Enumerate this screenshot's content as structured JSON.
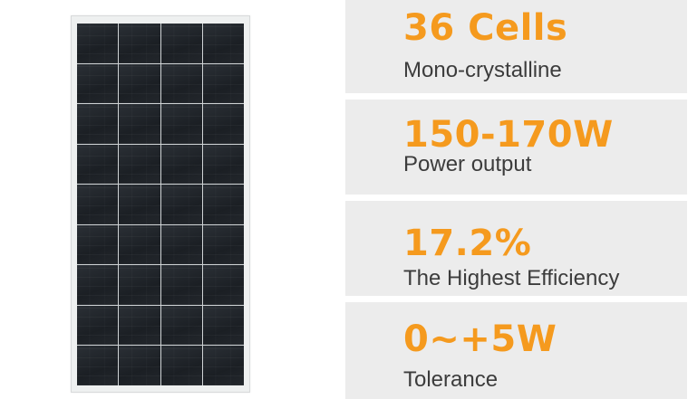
{
  "product_image": {
    "name": "solar-panel",
    "grid": {
      "columns": 4,
      "rows": 9
    }
  },
  "features": [
    {
      "value": "36 Cells",
      "label": "Mono-crystalline"
    },
    {
      "value": "150-170W",
      "label": "Power output"
    },
    {
      "value": "17.2%",
      "label": "The Highest Efficiency"
    },
    {
      "value": "0~+5W",
      "label": "Tolerance"
    }
  ],
  "colors": {
    "accent": "#f59a1e",
    "label_text": "#3c3c3c",
    "card_background": "#ececec"
  }
}
